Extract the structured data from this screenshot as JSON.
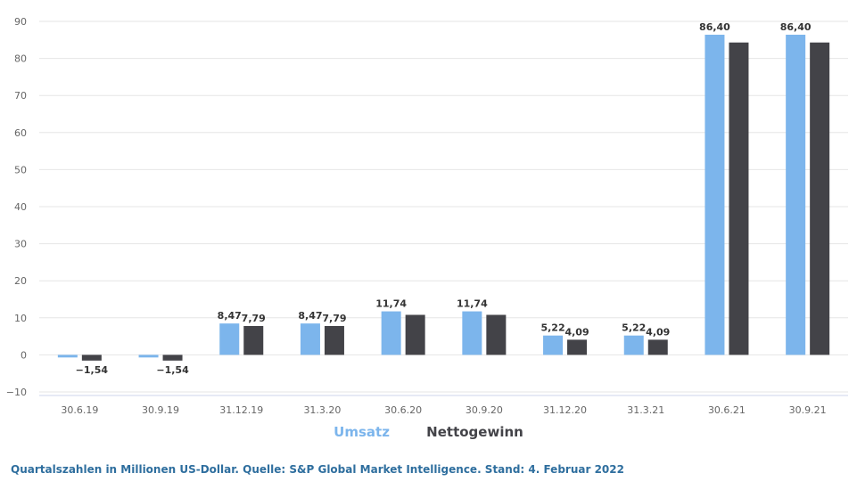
{
  "chart_data": {
    "type": "bar",
    "categories": [
      "30.6.19",
      "30.9.19",
      "31.12.19",
      "31.3.20",
      "30.6.20",
      "30.9.20",
      "31.12.20",
      "31.3.21",
      "30.6.21",
      "30.9.21"
    ],
    "series": [
      {
        "name": "Umsatz",
        "color": "#7cb5ec",
        "values": [
          -0.7,
          -0.7,
          8.47,
          8.47,
          11.74,
          11.74,
          5.22,
          5.22,
          86.4,
          86.4
        ],
        "labels": [
          "",
          "",
          "8,47",
          "8,47",
          "11,74",
          "11,74",
          "5,22",
          "5,22",
          "86,40",
          "86,40"
        ]
      },
      {
        "name": "Nettogewinn",
        "color": "#434348",
        "values": [
          -1.54,
          -1.54,
          7.79,
          7.79,
          10.8,
          10.8,
          4.09,
          4.09,
          84.3,
          84.3
        ],
        "labels": [
          "−1,54",
          "−1,54",
          "7,79",
          "7,79",
          "",
          "",
          "4,09",
          "4,09",
          "",
          ""
        ]
      }
    ],
    "ylim": [
      -10,
      90
    ],
    "yticks": [
      90,
      80,
      70,
      60,
      50,
      40,
      30,
      20,
      10,
      0,
      -10
    ],
    "ytick_labels": [
      "90",
      "80",
      "70",
      "60",
      "50",
      "40",
      "30",
      "20",
      "10",
      "0",
      "−10"
    ],
    "grid": true,
    "legend_position": "bottom-center"
  },
  "legend": {
    "umsatz_label": "Umsatz",
    "nettogewinn_label": "Nettogewinn",
    "umsatz_color": "#7cb5ec",
    "nettogewinn_color": "#434348"
  },
  "caption": "Quartalszahlen in Millionen US-Dollar. Quelle:  S&P Global Market Intelligence. Stand: 4. Februar 2022"
}
